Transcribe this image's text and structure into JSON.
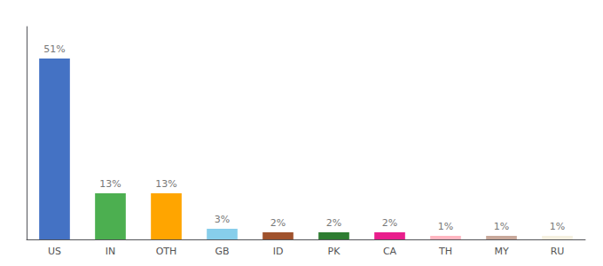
{
  "chart_data": {
    "type": "bar",
    "categories": [
      "US",
      "IN",
      "OTH",
      "GB",
      "ID",
      "PK",
      "CA",
      "TH",
      "MY",
      "RU"
    ],
    "values": [
      51,
      13,
      13,
      3,
      2,
      2,
      2,
      1,
      1,
      1
    ],
    "value_labels": [
      "51%",
      "13%",
      "13%",
      "3%",
      "2%",
      "2%",
      "2%",
      "1%",
      "1%",
      "1%"
    ],
    "data_labels": true,
    "colors": [
      "#4472C4",
      "#4CAF50",
      "#FFA500",
      "#87CEEB",
      "#A0522D",
      "#2E7D32",
      "#E91E8C",
      "#FFB6C1",
      "#C8A89A",
      "#F5F0E0"
    ],
    "ylim": [
      0,
      60
    ],
    "tick_labels": "x",
    "grid": false
  }
}
